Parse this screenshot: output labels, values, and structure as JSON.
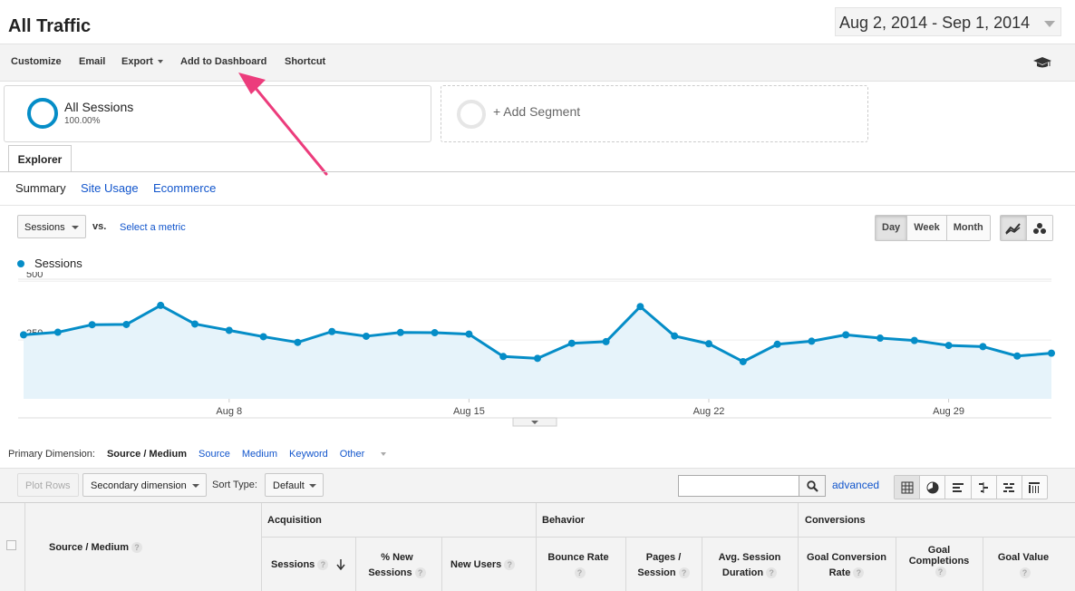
{
  "header": {
    "title": "All Traffic",
    "date_range": "Aug 2, 2014 - Sep 1, 2014"
  },
  "toolbar": {
    "customize": "Customize",
    "email": "Email",
    "export": "Export",
    "add_to_dashboard": "Add to Dashboard",
    "shortcut": "Shortcut",
    "right_icon": "graduation-cap-icon"
  },
  "segments": {
    "primary_name": "All Sessions",
    "primary_pct": "100.00%",
    "add_label": "+ Add Segment"
  },
  "tabs": {
    "explorer": "Explorer",
    "subtabs": [
      "Summary",
      "Site Usage",
      "Ecommerce"
    ]
  },
  "metric_bar": {
    "metric": "Sessions",
    "vs": "vs.",
    "select_metric": "Select a metric",
    "periods": [
      "Day",
      "Week",
      "Month"
    ],
    "active_period": "Day"
  },
  "colors": {
    "series": "#058dc7",
    "fill": "#e6f3fa",
    "link": "#1155cc",
    "annotation_arrow": "#ec3c7c"
  },
  "chart_data": {
    "type": "area",
    "series": [
      {
        "name": "Sessions",
        "values": [
          272,
          283,
          315,
          316,
          397,
          318,
          291,
          264,
          240,
          286,
          266,
          282,
          281,
          275,
          180,
          172,
          236,
          243,
          392,
          267,
          234,
          158,
          232,
          245,
          272,
          258,
          248,
          227,
          222,
          182,
          194
        ]
      }
    ],
    "x": [
      "Aug 2",
      "Aug 3",
      "Aug 4",
      "Aug 5",
      "Aug 6",
      "Aug 7",
      "Aug 8",
      "Aug 9",
      "Aug 10",
      "Aug 11",
      "Aug 12",
      "Aug 13",
      "Aug 14",
      "Aug 15",
      "Aug 16",
      "Aug 17",
      "Aug 18",
      "Aug 19",
      "Aug 20",
      "Aug 21",
      "Aug 22",
      "Aug 23",
      "Aug 24",
      "Aug 25",
      "Aug 26",
      "Aug 27",
      "Aug 28",
      "Aug 29",
      "Aug 30",
      "Aug 31",
      "Sep 1"
    ],
    "x_tick_labels": [
      "Aug 8",
      "Aug 15",
      "Aug 22",
      "Aug 29"
    ],
    "y_tick_labels": [
      "500",
      "250"
    ],
    "y_ticks": [
      500,
      250
    ],
    "ylim": [
      0,
      520
    ],
    "legend": "top-left",
    "grid": true
  },
  "dimension_row": {
    "label": "Primary Dimension:",
    "active": "Source / Medium",
    "options": [
      "Source",
      "Medium",
      "Keyword"
    ],
    "other": "Other"
  },
  "table_controls": {
    "plot_rows": "Plot Rows",
    "secondary_dimension": "Secondary dimension",
    "sort_type_label": "Sort Type:",
    "sort_type_value": "Default",
    "search_value": "",
    "advanced": "advanced"
  },
  "table": {
    "first_col": "Source / Medium",
    "groups": [
      "Acquisition",
      "Behavior",
      "Conversions"
    ],
    "columns": {
      "sessions": "Sessions",
      "pct_new_1": "% New",
      "pct_new_2": "Sessions",
      "new_users": "New Users",
      "bounce_rate": "Bounce Rate",
      "pages_1": "Pages /",
      "pages_2": "Session",
      "avg_1": "Avg. Session",
      "avg_2": "Duration",
      "gcr_1": "Goal Conversion",
      "gcr_2": "Rate",
      "gc_1": "Goal",
      "gc_2": "Completions",
      "goal_value": "Goal Value"
    },
    "help_glyph": "?"
  }
}
